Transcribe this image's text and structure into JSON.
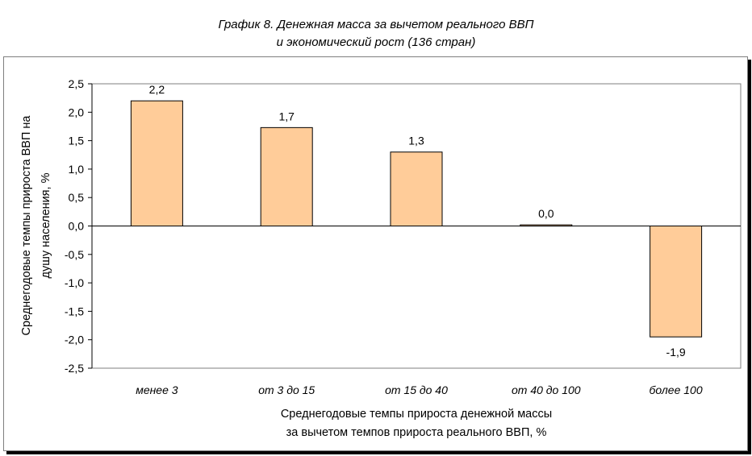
{
  "title_line1": "График 8. Денежная масса за вычетом реального ВВП",
  "title_line2": "и экономический рост (136 стран)",
  "chart_data": {
    "type": "bar",
    "categories": [
      "менее 3",
      "от 3 до 15",
      "от 15 до 40",
      "от 40 до 100",
      "более 100"
    ],
    "values": [
      2.2,
      1.73,
      1.3,
      0.02,
      -1.95
    ],
    "data_labels": [
      "2,2",
      "1,7",
      "1,3",
      "0,0",
      "-1,9"
    ],
    "ylim": [
      -2.5,
      2.5
    ],
    "yticks": [
      2.5,
      2.0,
      1.5,
      1.0,
      0.5,
      0.0,
      -0.5,
      -1.0,
      -1.5,
      -2.0,
      -2.5
    ],
    "ytick_labels": [
      "2,5",
      "2,0",
      "1,5",
      "1,0",
      "0,5",
      "0,0",
      "-0,5",
      "-1,0",
      "-1,5",
      "-2,0",
      "-2,5"
    ],
    "xlabel_line1": "Среднегодовые темпы прироста денежной массы",
    "xlabel_line2": "за вычетом темпов прироста реального ВВП, %",
    "ylabel_line1": "Среднегодовые темпы прироста ВВП на",
    "ylabel_line2": "душу населения, %",
    "grid": false,
    "legend": "none",
    "colors": {
      "bar_fill": "#FFCC99",
      "bar_stroke": "#000000",
      "axis": "#000000",
      "border": "#7f7f7f"
    }
  }
}
